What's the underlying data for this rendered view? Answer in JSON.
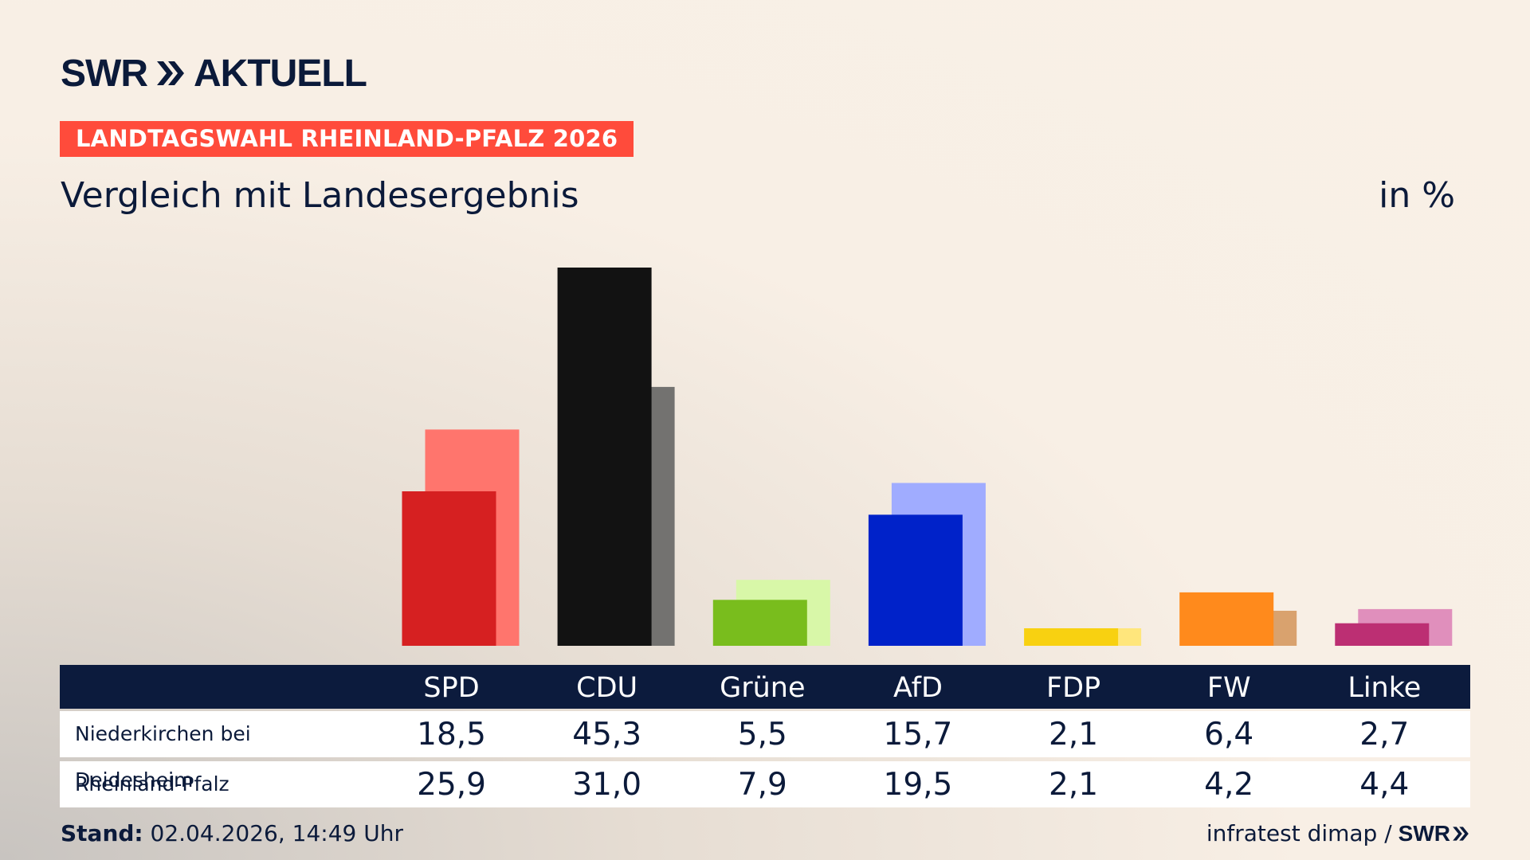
{
  "header": {
    "logo_text": "SWR",
    "logo_suffix": "AKTUELL",
    "badge": "LANDTAGSWAHL RHEINLAND-PFALZ 2026",
    "title": "Vergleich mit Landesergebnis",
    "unit": "in %"
  },
  "chart_data": {
    "type": "bar",
    "categories": [
      "SPD",
      "CDU",
      "Grüne",
      "AfD",
      "FDP",
      "FW",
      "Linke"
    ],
    "series": [
      {
        "name": "Niederkirchen bei Deidesheim",
        "values": [
          18.5,
          45.3,
          5.5,
          15.7,
          2.1,
          6.4,
          2.7
        ],
        "labels": [
          "18,5",
          "45,3",
          "5,5",
          "15,7",
          "2,1",
          "6,4",
          "2,7"
        ],
        "colors": [
          "#d62021",
          "#121212",
          "#79bd1d",
          "#0022c9",
          "#f8d111",
          "#ff8a1c",
          "#bc2f73"
        ]
      },
      {
        "name": "Rheinland-Pfalz",
        "values": [
          25.9,
          31.0,
          7.9,
          19.5,
          2.1,
          4.2,
          4.4
        ],
        "labels": [
          "25,9",
          "31,0",
          "7,9",
          "19,5",
          "2,1",
          "4,2",
          "4,4"
        ],
        "colors": [
          "#ff756d",
          "#737270",
          "#d8f7a8",
          "#a0acff",
          "#ffe67c",
          "#d9a26e",
          "#e08fbc"
        ]
      }
    ],
    "ylim": [
      0,
      45.3
    ]
  },
  "footer": {
    "stand_label": "Stand:",
    "stand_value": "02.04.2026, 14:49 Uhr",
    "source": "infratest dimap /",
    "source_logo": "SWR"
  }
}
